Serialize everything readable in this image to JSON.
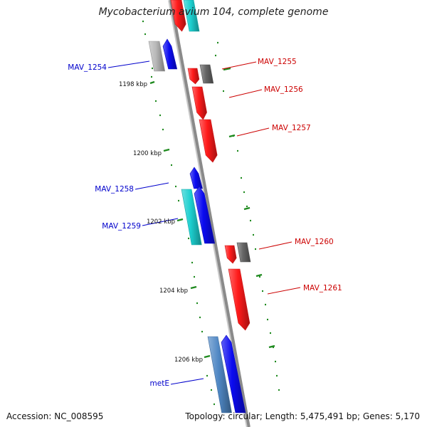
{
  "title": "Mycobacterium avium 104, complete genome",
  "footer": {
    "accession": "Accession: NC_008595",
    "topology": "Topology: circular; Length: 5,475,491 bp; Genes: 5,170"
  },
  "colors": {
    "backbone": "#8a8a8a",
    "tick": "#1f8a1f",
    "red_gene": "#ff1a1a",
    "blue_gene": "#0a0af0",
    "cyan_gene": "#1ccfcf",
    "gray_gene": "#666666",
    "lightgray_gene": "#b8b8b8",
    "steel_gene": "#4f87c4",
    "red_label": "#cc0000",
    "blue_label": "#0000cc"
  },
  "kbp_labels": [
    "1198 kbp",
    "1200 kbp",
    "1202 kbp",
    "1204 kbp",
    "1206 kbp"
  ],
  "gene_labels": [
    {
      "text": "MAV_1254",
      "color": "blue_label"
    },
    {
      "text": "MAV_1255",
      "color": "red_label"
    },
    {
      "text": "MAV_1256",
      "color": "red_label"
    },
    {
      "text": "MAV_1257",
      "color": "red_label"
    },
    {
      "text": "MAV_1258",
      "color": "blue_label"
    },
    {
      "text": "MAV_1259",
      "color": "blue_label"
    },
    {
      "text": "MAV_1260",
      "color": "red_label"
    },
    {
      "text": "MAV_1261",
      "color": "red_label"
    },
    {
      "text": "metE",
      "color": "blue_label"
    }
  ]
}
